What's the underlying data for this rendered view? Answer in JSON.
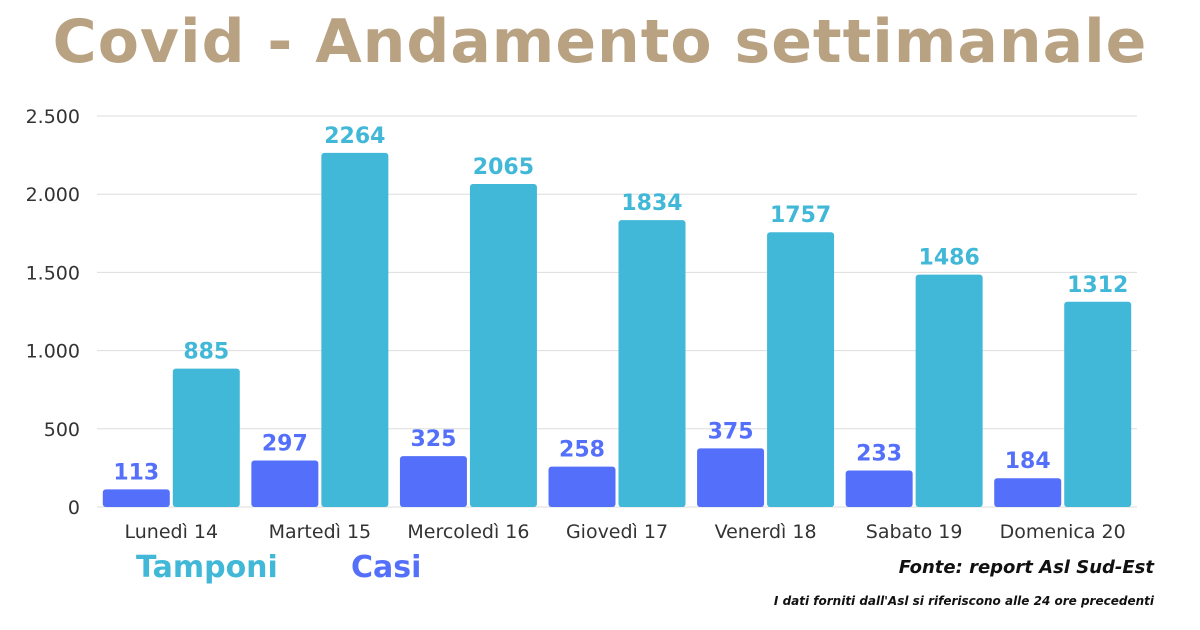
{
  "colors": {
    "title": "#b9a282",
    "tamponi": "#41b8d7",
    "casi": "#5470fa",
    "grid": "#dddddd",
    "axis_text": "#333333"
  },
  "chart_data": {
    "type": "bar",
    "title": "Covid - Andamento settimanale",
    "categories": [
      "Lunedì 14",
      "Martedì 15",
      "Mercoledì 16",
      "Giovedì 17",
      "Venerdì 18",
      "Sabato 19",
      "Domenica 20"
    ],
    "series": [
      {
        "name": "Casi",
        "values": [
          113,
          297,
          325,
          258,
          375,
          233,
          184
        ]
      },
      {
        "name": "Tamponi",
        "values": [
          885,
          2264,
          2065,
          1834,
          1757,
          1486,
          1312
        ]
      }
    ],
    "ylim": [
      0,
      2500
    ],
    "yticks": [
      0,
      500,
      1000,
      1500,
      2000,
      2500
    ],
    "ytick_labels": [
      "0",
      "500",
      "1.000",
      "1.500",
      "2.000",
      "2.500"
    ],
    "grid": true,
    "legend": [
      "Tamponi",
      "Casi"
    ],
    "legend_placement": "bottom-left"
  },
  "footer": {
    "source": "Fonte: report Asl Sud-Est",
    "note": "I dati forniti dall'Asl si riferiscono alle 24 ore precedenti"
  }
}
